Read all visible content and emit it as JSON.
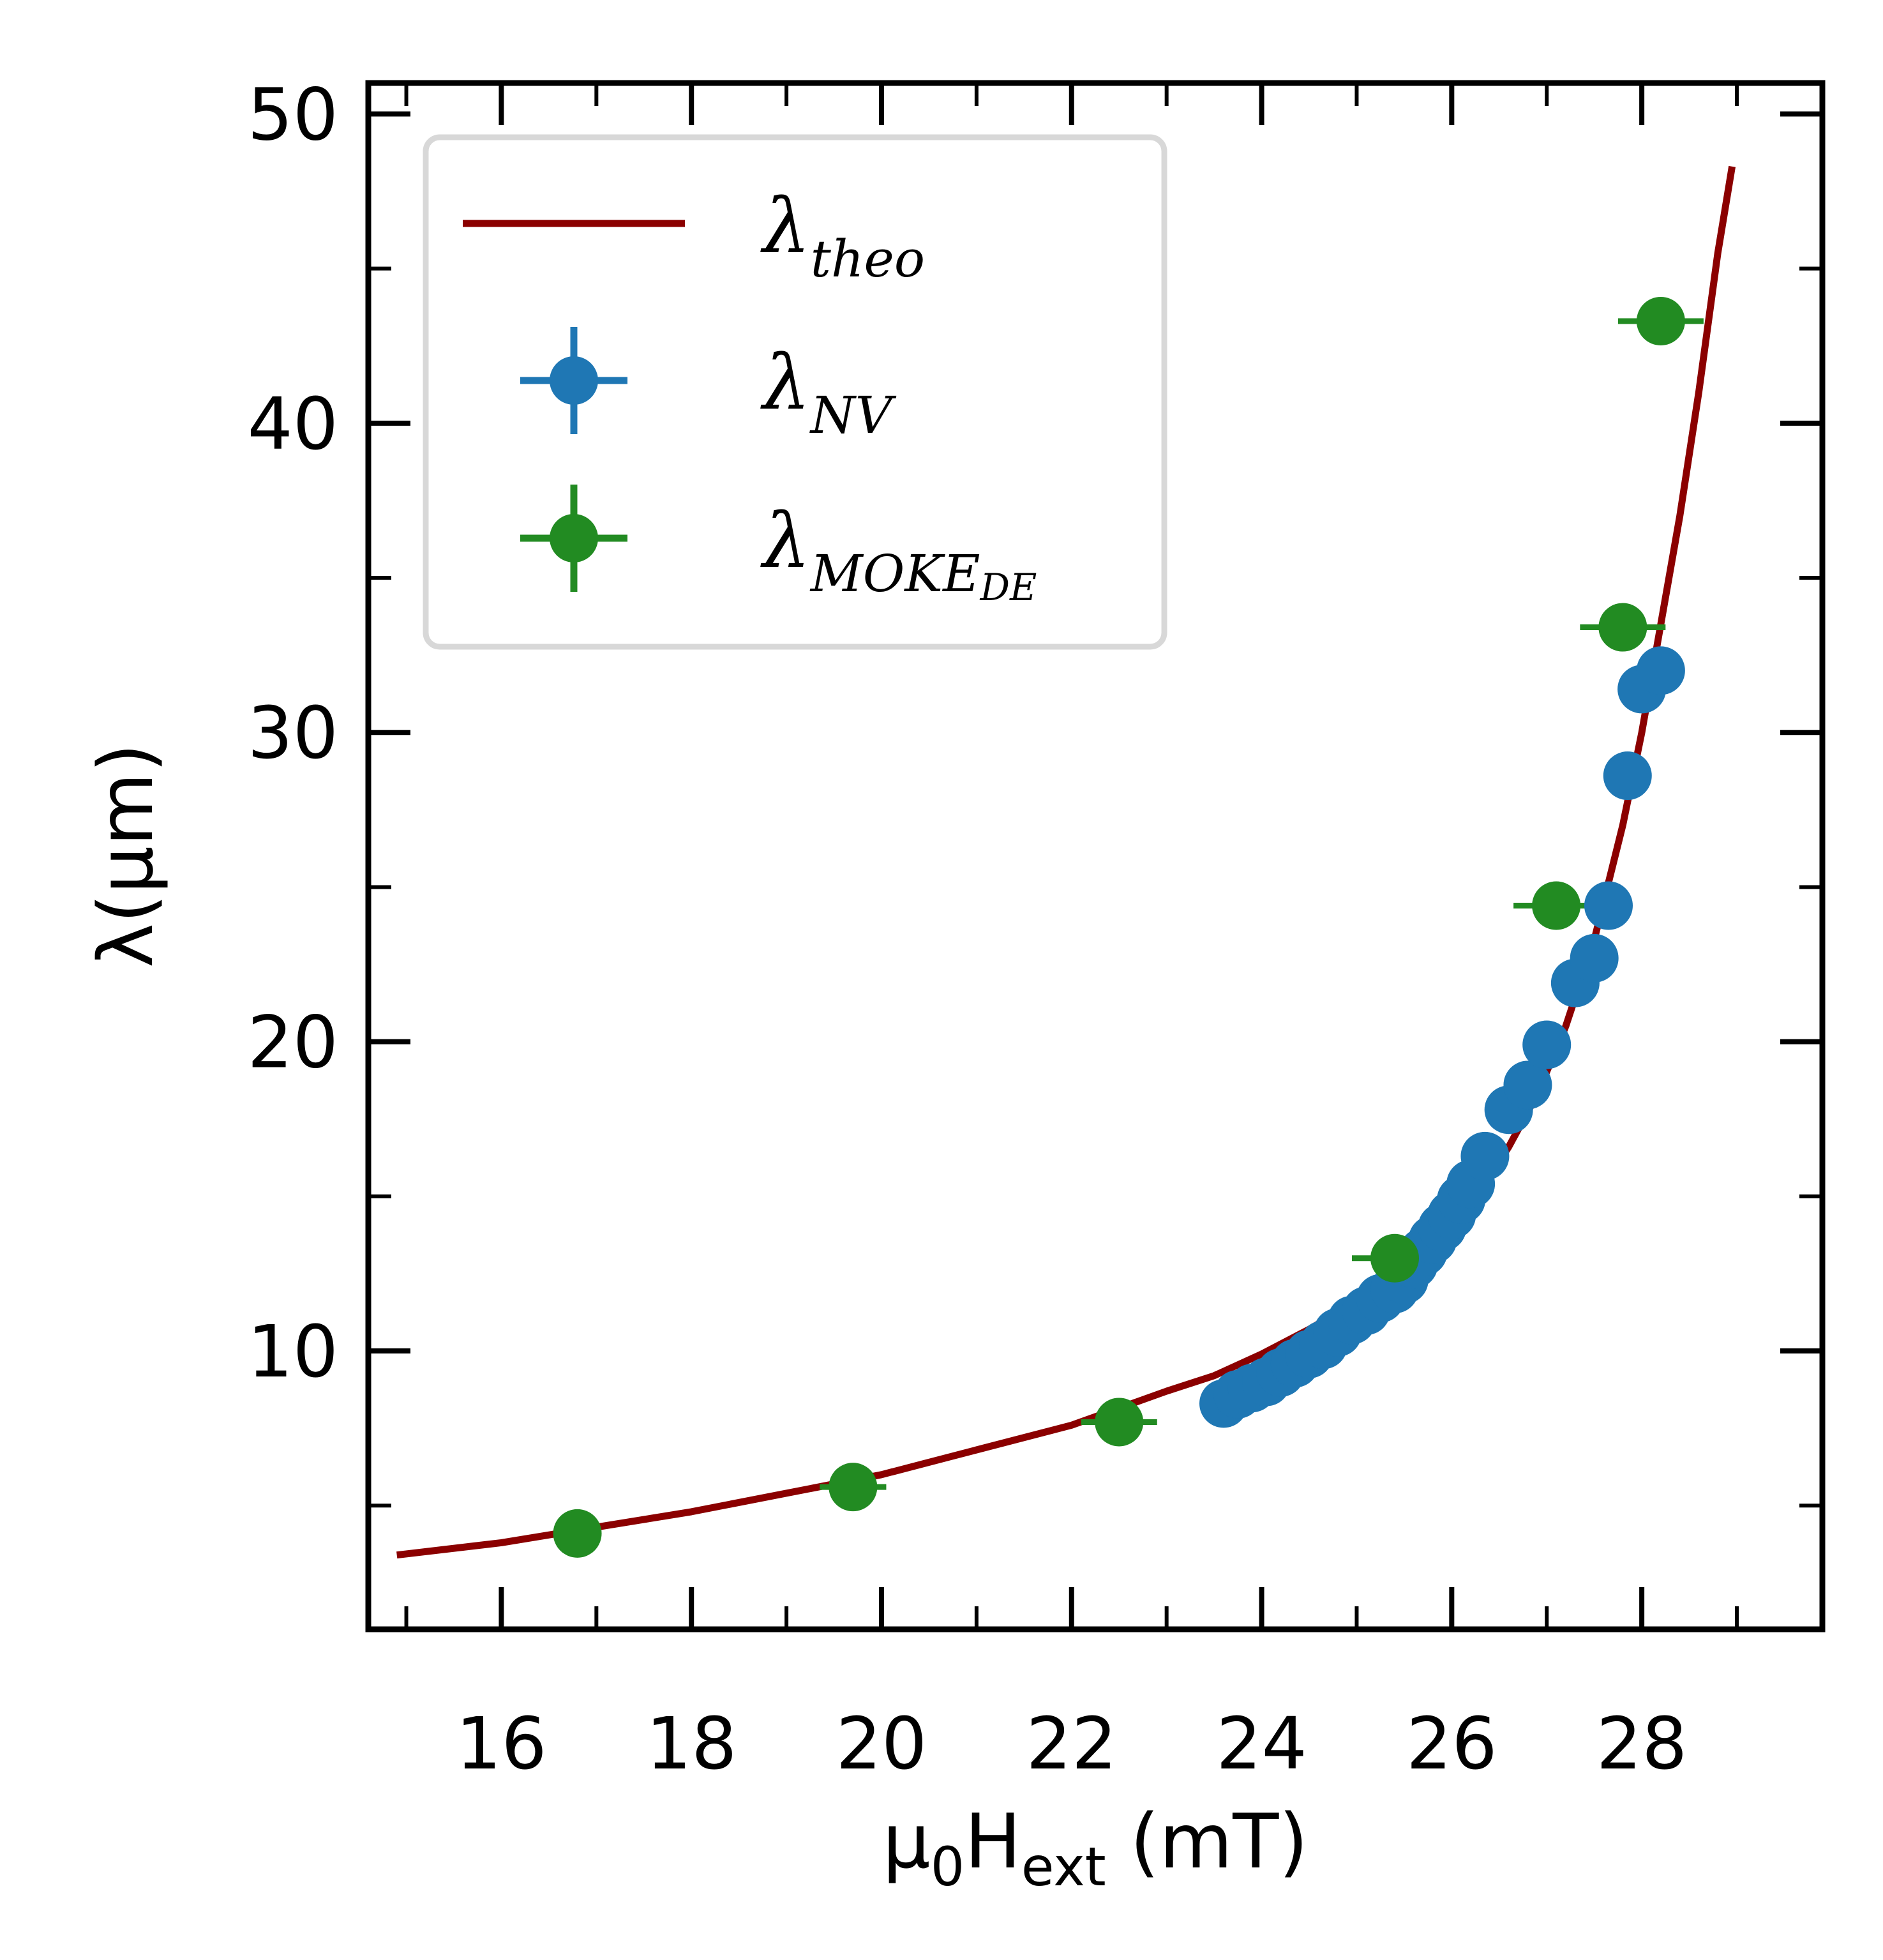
{
  "chart_data": {
    "type": "scatter",
    "xlabel": {
      "main": "μ",
      "sub0": "0",
      "mid": "H",
      "sub1": "ext",
      "tail": " (mT)"
    },
    "ylabel": "λ(µm)",
    "xlim": [
      14.6,
      29.9
    ],
    "ylim": [
      1,
      51
    ],
    "xticks": [
      16,
      18,
      20,
      22,
      24,
      26,
      28
    ],
    "xtick_labels": [
      "16",
      "18",
      "20",
      "22",
      "24",
      "26",
      "28"
    ],
    "xminor": [
      15,
      17,
      19,
      21,
      23,
      25,
      27,
      29
    ],
    "yticks": [
      10,
      20,
      30,
      40,
      50
    ],
    "ytick_labels": [
      "10",
      "20",
      "30",
      "40",
      "50"
    ],
    "yminor": [
      5,
      15,
      25,
      35,
      45
    ],
    "grid": false,
    "legend_position": "upper-left",
    "series": [
      {
        "name": "theo",
        "kind": "line",
        "color": "#8b0000",
        "x": [
          14.9,
          16,
          17,
          18,
          19,
          20,
          21,
          22,
          23,
          23.5,
          24,
          24.5,
          25,
          25.5,
          26,
          26.3,
          26.6,
          26.9,
          27.2,
          27.5,
          27.8,
          28.0,
          28.2,
          28.4,
          28.6,
          28.8,
          28.95
        ],
        "y": [
          3.4,
          3.8,
          4.3,
          4.8,
          5.4,
          6.0,
          6.8,
          7.6,
          8.7,
          9.2,
          9.9,
          10.7,
          11.6,
          12.7,
          14.0,
          15.2,
          16.6,
          18.3,
          20.5,
          23.3,
          27.0,
          30.0,
          33.5,
          37.0,
          41.0,
          45.5,
          48.3
        ]
      },
      {
        "name": "NV",
        "kind": "errorbar",
        "color": "#1f77b4",
        "x": [
          23.6,
          23.75,
          23.9,
          24.05,
          24.2,
          24.35,
          24.5,
          24.65,
          24.8,
          24.95,
          25.1,
          25.25,
          25.4,
          25.5,
          25.6,
          25.7,
          25.8,
          25.9,
          26.0,
          26.1,
          26.2,
          26.35,
          26.6,
          26.8,
          27.0,
          27.3,
          27.5,
          27.65,
          27.85,
          28.0,
          28.2
        ],
        "y": [
          8.3,
          8.6,
          8.8,
          9.0,
          9.3,
          9.6,
          9.9,
          10.2,
          10.6,
          11.0,
          11.3,
          11.7,
          12.0,
          12.3,
          12.8,
          13.2,
          13.6,
          14.0,
          14.4,
          14.9,
          15.4,
          16.3,
          17.8,
          18.6,
          19.9,
          21.9,
          22.7,
          24.4,
          28.6,
          31.4,
          32.0
        ],
        "xerr": [
          0.18,
          0.18,
          0.18,
          0.18,
          0.18,
          0.18,
          0.18,
          0.18,
          0.18,
          0.18,
          0.18,
          0.18,
          0.18,
          0.18,
          0.18,
          0.18,
          0.18,
          0.18,
          0.18,
          0.18,
          0.18,
          0.18,
          0.18,
          0.18,
          0.18,
          0.2,
          0.2,
          0.2,
          0.2,
          0.22,
          0.25
        ],
        "yerr": [
          0.15,
          0.15,
          0.15,
          0.15,
          0.15,
          0.15,
          0.15,
          0.15,
          0.15,
          0.15,
          0.15,
          0.15,
          0.15,
          0.15,
          0.15,
          0.15,
          0.15,
          0.15,
          0.2,
          0.2,
          0.2,
          0.2,
          0.2,
          0.2,
          0.3,
          0.3,
          0.3,
          0.3,
          0.4,
          0.4,
          0.4
        ]
      },
      {
        "name": "MOKE",
        "name_sub": "DE",
        "kind": "errorbar",
        "color": "#228b22",
        "x": [
          16.8,
          19.7,
          22.5,
          25.4,
          27.1,
          27.8,
          28.2
        ],
        "y": [
          4.1,
          5.6,
          7.7,
          13.0,
          24.4,
          33.4,
          43.3
        ],
        "xerr": [
          0.25,
          0.35,
          0.4,
          0.45,
          0.45,
          0.45,
          0.45
        ],
        "yerr": [
          0.2,
          0.2,
          0.2,
          0.3,
          0.3,
          0.3,
          0.4
        ]
      }
    ]
  }
}
